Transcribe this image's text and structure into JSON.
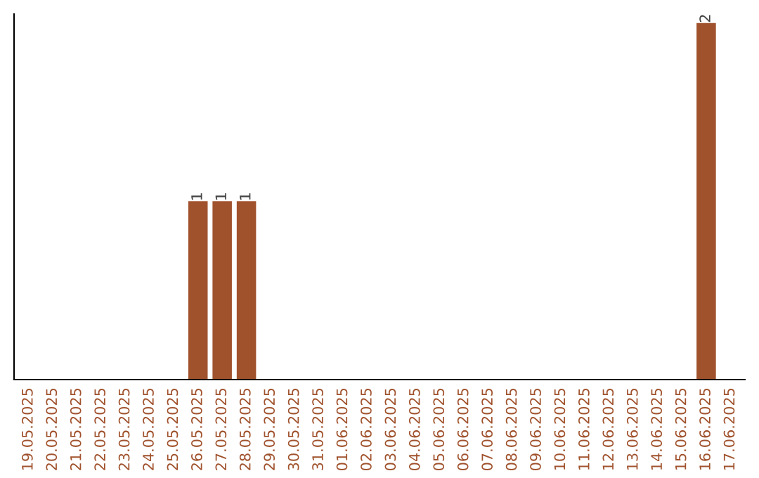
{
  "chart_data": {
    "type": "bar",
    "categories": [
      "19.05.2025",
      "20.05.2025",
      "21.05.2025",
      "22.05.2025",
      "23.05.2025",
      "24.05.2025",
      "25.05.2025",
      "26.05.2025",
      "27.05.2025",
      "28.05.2025",
      "29.05.2025",
      "30.05.2025",
      "31.05.2025",
      "01.06.2025",
      "02.06.2025",
      "03.06.2025",
      "04.06.2025",
      "05.06.2025",
      "06.06.2025",
      "07.06.2025",
      "08.06.2025",
      "09.06.2025",
      "10.06.2025",
      "11.06.2025",
      "12.06.2025",
      "13.06.2025",
      "14.06.2025",
      "15.06.2025",
      "16.06.2025",
      "17.06.2025"
    ],
    "values": [
      0,
      0,
      0,
      0,
      0,
      0,
      0,
      1,
      1,
      1,
      0,
      0,
      0,
      0,
      0,
      0,
      0,
      0,
      0,
      0,
      0,
      0,
      0,
      0,
      0,
      0,
      0,
      0,
      2,
      0
    ],
    "value_labels": [
      null,
      null,
      null,
      null,
      null,
      null,
      null,
      "1",
      "1",
      "1",
      null,
      null,
      null,
      null,
      null,
      null,
      null,
      null,
      null,
      null,
      null,
      null,
      null,
      null,
      null,
      null,
      null,
      null,
      "2",
      null
    ],
    "color": "#a0522d",
    "ylim": [
      0,
      2.05
    ],
    "tick_labels": "x",
    "grid": false,
    "legend": false
  }
}
